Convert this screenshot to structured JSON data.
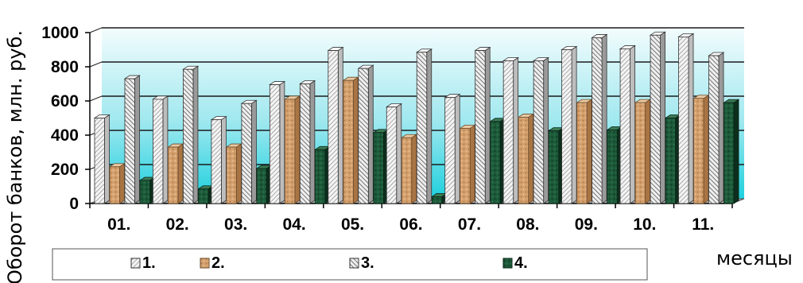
{
  "chart_data": {
    "type": "bar",
    "ylabel": "Оборот банков, млн. руб.",
    "xlabel": "месяцы",
    "categories": [
      "01.",
      "02.",
      "03.",
      "04.",
      "05.",
      "06.",
      "07.",
      "08.",
      "09.",
      "10.",
      "11."
    ],
    "ylim": [
      0,
      1000
    ],
    "yticks": [
      "0",
      "200",
      "400",
      "600",
      "800",
      "1000"
    ],
    "grid": true,
    "legend_position": "bottom",
    "series": [
      {
        "name": "1.",
        "values": [
          500,
          610,
          490,
          695,
          895,
          565,
          620,
          835,
          900,
          905,
          975
        ]
      },
      {
        "name": "2.",
        "values": [
          215,
          330,
          330,
          610,
          720,
          385,
          440,
          505,
          590,
          590,
          615
        ]
      },
      {
        "name": "3.",
        "values": [
          730,
          785,
          585,
          700,
          790,
          885,
          895,
          835,
          970,
          985,
          865
        ]
      },
      {
        "name": "4.",
        "values": [
          135,
          85,
          205,
          315,
          415,
          40,
          480,
          425,
          430,
          500,
          590
        ]
      }
    ],
    "colors": {
      "series1": "#e6e6e6",
      "series2": "#d9a878",
      "series3": "#d0d0d0",
      "series4": "#1e5a3a",
      "plot_top": "#eaf9fb",
      "plot_bottom": "#22d2e0"
    }
  }
}
